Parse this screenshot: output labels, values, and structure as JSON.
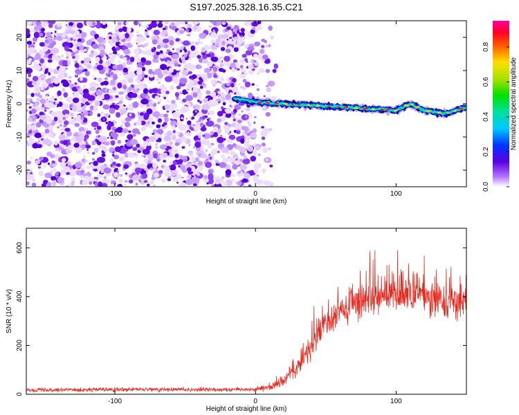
{
  "title": "S197.2025.328.16.35.C21",
  "chart_data": [
    {
      "id": "spectrogram",
      "type": "heatmap",
      "xlabel": "Height of straight line (km)",
      "ylabel": "Frequency (Hz)",
      "xlim": [
        -163,
        150
      ],
      "ylim": [
        -25,
        25
      ],
      "xticks": [
        -100,
        0,
        100
      ],
      "yticks": [
        -20,
        -10,
        0,
        10,
        20
      ],
      "colorbar": {
        "label": "Normalized spectral amplitude",
        "ticks": [
          0.0,
          0.2,
          0.4,
          0.6,
          0.8
        ],
        "range": [
          0,
          0.95
        ]
      },
      "signal_track": {
        "x": [
          -15,
          0,
          20,
          40,
          60,
          80,
          100,
          110,
          120,
          135,
          150
        ],
        "freq": [
          1.5,
          0.5,
          0,
          -0.5,
          -1,
          -1.5,
          -2,
          0,
          -2,
          -3,
          -1
        ]
      },
      "noise_region_x": [
        -163,
        5
      ]
    },
    {
      "id": "snr",
      "type": "line",
      "xlabel": "Height of straight line (km)",
      "ylabel": "SNR (10 * v/v)",
      "xlim": [
        -163,
        150
      ],
      "ylim": [
        0,
        680
      ],
      "xticks": [
        -100,
        0,
        100
      ],
      "yticks": [
        0,
        200,
        400,
        600
      ],
      "color": "#e8281e",
      "envelope": {
        "x": [
          -163,
          0,
          10,
          20,
          30,
          40,
          45,
          50,
          60,
          70,
          80,
          90,
          100,
          110,
          120,
          130,
          140,
          150
        ],
        "mean": [
          18,
          20,
          30,
          60,
          120,
          200,
          250,
          290,
          330,
          370,
          400,
          405,
          400,
          415,
          410,
          390,
          380,
          390
        ],
        "spread": [
          8,
          8,
          15,
          25,
          40,
          50,
          55,
          60,
          65,
          70,
          75,
          75,
          75,
          75,
          75,
          70,
          70,
          70
        ]
      }
    }
  ]
}
